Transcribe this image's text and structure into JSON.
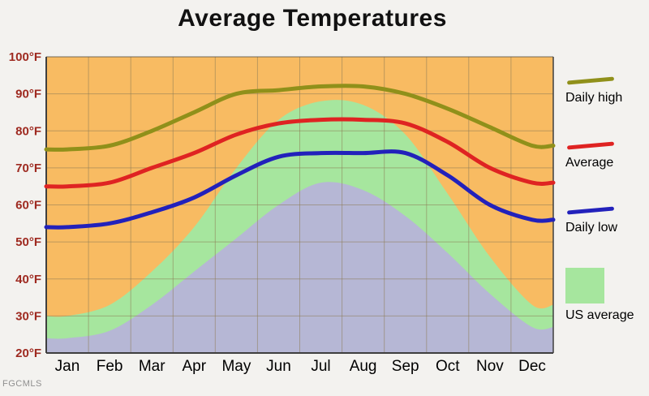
{
  "title": "Average Temperatures",
  "watermark": "FGCMLS",
  "legend": [
    {
      "label": "Daily high",
      "type": "line",
      "color": "#90901a"
    },
    {
      "label": "Average",
      "type": "line",
      "color": "#df2322"
    },
    {
      "label": "Daily low",
      "type": "line",
      "color": "#2221bb"
    },
    {
      "label": "US average",
      "type": "area",
      "color": "#a6e69e"
    }
  ],
  "chart_data": {
    "type": "line",
    "title": "Average Temperatures",
    "categories": [
      "Jan",
      "Feb",
      "Mar",
      "Apr",
      "May",
      "Jun",
      "Jul",
      "Aug",
      "Sep",
      "Oct",
      "Nov",
      "Dec"
    ],
    "series": [
      {
        "name": "US average high",
        "type": "area",
        "color": "#a6e69e",
        "opacity": 1,
        "values": [
          30,
          33,
          42,
          54,
          70,
          83,
          88,
          87,
          79,
          63,
          46,
          33
        ]
      },
      {
        "name": "US average low",
        "type": "area",
        "color": "#b9aede",
        "opacity": 0.85,
        "values": [
          24,
          26,
          33,
          42,
          51,
          60,
          66,
          64,
          57,
          47,
          36,
          27
        ]
      },
      {
        "name": "Daily high",
        "type": "line",
        "color": "#90901a",
        "values": [
          75,
          76,
          80,
          85,
          90,
          91,
          92,
          92,
          90,
          86,
          81,
          76
        ]
      },
      {
        "name": "Average",
        "type": "line",
        "color": "#df2322",
        "values": [
          65,
          66,
          70,
          74,
          79,
          82,
          83,
          83,
          82,
          77,
          70,
          66
        ]
      },
      {
        "name": "Daily low",
        "type": "line",
        "color": "#2221bb",
        "values": [
          54,
          55,
          58,
          62,
          68,
          73,
          74,
          74,
          74,
          68,
          60,
          56
        ]
      }
    ],
    "ylim": [
      20,
      100
    ],
    "ytick_step": 10,
    "ytick_suffix": "°F",
    "ytick_color": "#9e2a20",
    "xlabel": "",
    "ylabel": "",
    "plot_bg": "#f8bb62",
    "grid": true,
    "grid_color": "#8c7b55",
    "frame_color": "#3f3f3f",
    "legend_position": "right"
  }
}
